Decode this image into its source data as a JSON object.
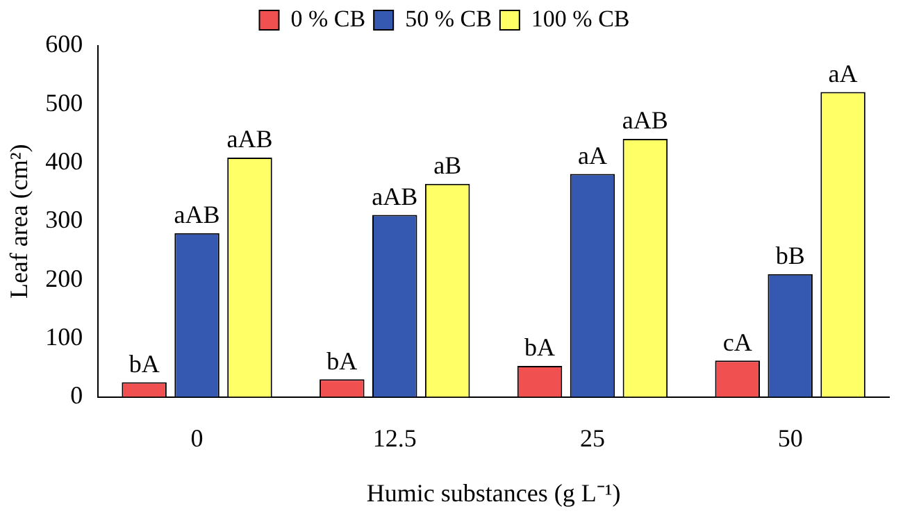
{
  "chart_data": {
    "type": "bar",
    "xlabel": "Humic substances (g L⁻¹)",
    "ylabel": "Leaf area (cm²)",
    "categories": [
      "0",
      "12.5",
      "25",
      "50"
    ],
    "series": [
      {
        "name": "0 % CB",
        "color": "#f05050",
        "values": [
          25,
          30,
          53,
          62
        ],
        "value_labels": [
          "bA",
          "bA",
          "bA",
          "cA"
        ]
      },
      {
        "name": "50 % CB",
        "color": "#3558b0",
        "values": [
          280,
          311,
          381,
          210
        ],
        "value_labels": [
          "aAB",
          "aAB",
          "aA",
          "bB"
        ]
      },
      {
        "name": "100 % CB",
        "color": "#ffff66",
        "values": [
          409,
          364,
          441,
          521
        ],
        "value_labels": [
          "aAB",
          "aB",
          "aAB",
          "aA"
        ]
      }
    ],
    "ylim": [
      0,
      600
    ],
    "yticks": [
      0,
      100,
      200,
      300,
      400,
      500,
      600
    ],
    "grid": false,
    "legend": "top"
  }
}
